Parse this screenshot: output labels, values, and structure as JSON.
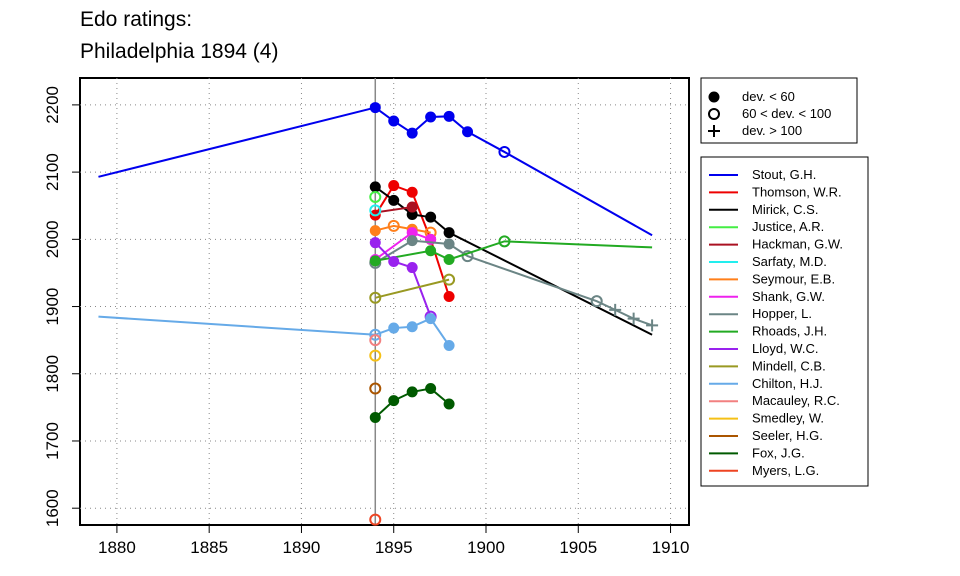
{
  "chart_data": {
    "type": "line",
    "title": "Edo ratings:",
    "subtitle": "Philadelphia 1894 (4)",
    "xlabel": "",
    "ylabel": "",
    "xlim": [
      1878,
      1911
    ],
    "ylim": [
      1575,
      2240
    ],
    "x_ticks": [
      1880,
      1885,
      1890,
      1895,
      1900,
      1905,
      1910
    ],
    "y_ticks": [
      1600,
      1700,
      1800,
      1900,
      2000,
      2100,
      2200
    ],
    "grid": true,
    "reference_line_x": 1894,
    "marker_legend": [
      {
        "label": "dev. < 60",
        "marker": "filled"
      },
      {
        "label": "60 < dev. < 100",
        "marker": "open"
      },
      {
        "label": "dev. > 100",
        "marker": "plus"
      }
    ],
    "legend_position": "right",
    "series": [
      {
        "name": "Stout, G.H.",
        "color": "#0000ee",
        "points": [
          [
            1879,
            2093,
            "none"
          ],
          [
            1894,
            2196,
            "filled"
          ],
          [
            1895,
            2176,
            "filled"
          ],
          [
            1896,
            2158,
            "filled"
          ],
          [
            1897,
            2182,
            "filled"
          ],
          [
            1898,
            2183,
            "filled"
          ],
          [
            1899,
            2160,
            "filled"
          ],
          [
            1901,
            2130,
            "open"
          ],
          [
            1909,
            2006,
            "none"
          ]
        ]
      },
      {
        "name": "Thomson, W.R.",
        "color": "#ee0000",
        "points": [
          [
            1894,
            2036,
            "filled"
          ],
          [
            1895,
            2080,
            "filled"
          ],
          [
            1896,
            2070,
            "filled"
          ],
          [
            1897,
            2000,
            "filled"
          ],
          [
            1898,
            1915,
            "filled"
          ]
        ]
      },
      {
        "name": "Mirick, C.S.",
        "color": "#000000",
        "points": [
          [
            1894,
            2078,
            "filled"
          ],
          [
            1895,
            2058,
            "filled"
          ],
          [
            1896,
            2037,
            "filled"
          ],
          [
            1897,
            2033,
            "filled"
          ],
          [
            1898,
            2010,
            "filled"
          ],
          [
            1909,
            1858,
            "none"
          ]
        ]
      },
      {
        "name": "Justice, A.R.",
        "color": "#44ee44",
        "points": [
          [
            1894,
            2063,
            "open"
          ]
        ]
      },
      {
        "name": "Hackman, G.W.",
        "color": "#aa1122",
        "points": [
          [
            1894,
            2040,
            "none"
          ],
          [
            1896,
            2048,
            "filled"
          ]
        ]
      },
      {
        "name": "Sarfaty, M.D.",
        "color": "#22eeee",
        "points": [
          [
            1894,
            2043,
            "open"
          ]
        ]
      },
      {
        "name": "Seymour, E.B.",
        "color": "#ff7f1a",
        "points": [
          [
            1894,
            2013,
            "filled"
          ],
          [
            1895,
            2020,
            "open"
          ],
          [
            1896,
            2015,
            "filled"
          ],
          [
            1897,
            2010,
            "open"
          ]
        ]
      },
      {
        "name": "Shank, G.W.",
        "color": "#ee22ee",
        "points": [
          [
            1894,
            1970,
            "filled"
          ],
          [
            1896,
            2010,
            "filled"
          ],
          [
            1897,
            2000,
            "filled"
          ]
        ]
      },
      {
        "name": "Hopper, L.",
        "color": "#6b8585",
        "points": [
          [
            1894,
            1965,
            "open"
          ],
          [
            1896,
            1998,
            "filled"
          ],
          [
            1898,
            1993,
            "filled"
          ],
          [
            1899,
            1975,
            "open"
          ],
          [
            1906,
            1908,
            "open"
          ],
          [
            1907,
            1895,
            "plus"
          ],
          [
            1908,
            1882,
            "plus"
          ],
          [
            1909,
            1872,
            "plus"
          ]
        ]
      },
      {
        "name": "Rhoads, J.H.",
        "color": "#22aa22",
        "points": [
          [
            1894,
            1968,
            "filled"
          ],
          [
            1897,
            1983,
            "filled"
          ],
          [
            1898,
            1970,
            "filled"
          ],
          [
            1901,
            1997,
            "open"
          ],
          [
            1909,
            1988,
            "none"
          ]
        ]
      },
      {
        "name": "Lloyd, W.C.",
        "color": "#9922ee",
        "points": [
          [
            1894,
            1995,
            "filled"
          ],
          [
            1895,
            1967,
            "filled"
          ],
          [
            1896,
            1958,
            "filled"
          ],
          [
            1897,
            1885,
            "open"
          ]
        ]
      },
      {
        "name": "Mindell, C.B.",
        "color": "#999922",
        "points": [
          [
            1894,
            1913,
            "open"
          ],
          [
            1898,
            1940,
            "open"
          ]
        ]
      },
      {
        "name": "Chilton, H.J.",
        "color": "#66aae8",
        "points": [
          [
            1879,
            1885,
            "none"
          ],
          [
            1894,
            1858,
            "open"
          ],
          [
            1895,
            1868,
            "filled"
          ],
          [
            1896,
            1870,
            "filled"
          ],
          [
            1897,
            1882,
            "filled"
          ],
          [
            1898,
            1842,
            "filled"
          ]
        ]
      },
      {
        "name": "Macauley, R.C.",
        "color": "#f28080",
        "points": [
          [
            1894,
            1850,
            "open"
          ]
        ]
      },
      {
        "name": "Smedley, W.",
        "color": "#f5c016",
        "points": [
          [
            1894,
            1827,
            "open"
          ]
        ]
      },
      {
        "name": "Seeler, H.G.",
        "color": "#aa5500",
        "points": [
          [
            1894,
            1778,
            "open"
          ]
        ]
      },
      {
        "name": "Fox, J.G.",
        "color": "#005a00",
        "points": [
          [
            1894,
            1735,
            "filled"
          ],
          [
            1895,
            1760,
            "filled"
          ],
          [
            1896,
            1773,
            "filled"
          ],
          [
            1897,
            1778,
            "filled"
          ],
          [
            1898,
            1755,
            "filled"
          ]
        ]
      },
      {
        "name": "Myers, L.G.",
        "color": "#ee4422",
        "points": [
          [
            1894,
            1583,
            "open"
          ]
        ]
      }
    ]
  }
}
